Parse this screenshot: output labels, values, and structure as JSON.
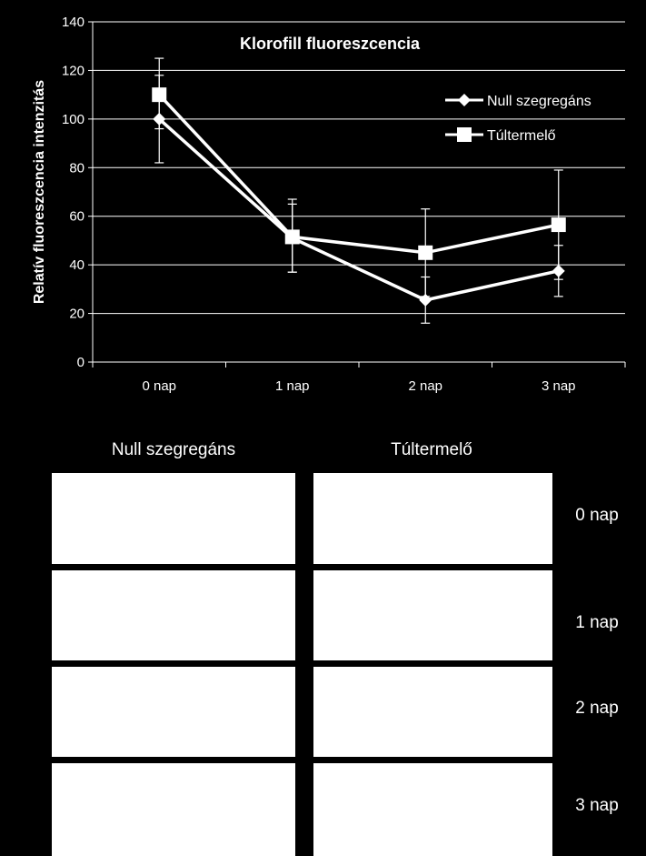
{
  "chart_data": {
    "type": "line",
    "title": "Klorofill fluoreszcencia",
    "xlabel": "",
    "ylabel": "Relatív fluoreszcencia intenzitás",
    "categories": [
      "0 nap",
      "1 nap",
      "2 nap",
      "3 nap"
    ],
    "ylim": [
      0,
      140
    ],
    "yticks": [
      0,
      20,
      40,
      60,
      80,
      100,
      120,
      140
    ],
    "grid": true,
    "legend_position": "top-right",
    "series": [
      {
        "name": "Null szegregáns",
        "marker": "diamond",
        "values": [
          100,
          51,
          25.5,
          37.5
        ],
        "error_low": [
          82,
          37,
          16,
          27
        ],
        "error_high": [
          118,
          65,
          35,
          48
        ]
      },
      {
        "name": "Túltermelő",
        "marker": "square",
        "values": [
          110,
          51.5,
          45,
          56.5
        ],
        "error_low": [
          96,
          37,
          27,
          34
        ],
        "error_high": [
          125,
          67,
          63,
          79
        ]
      }
    ],
    "colors": {
      "background": "#000000",
      "foreground": "#ffffff"
    }
  },
  "grid_panel": {
    "columns": [
      "Null szegregáns",
      "Túltermelő"
    ],
    "rows": [
      "0 nap",
      "1 nap",
      "2 nap",
      "3 nap"
    ]
  }
}
